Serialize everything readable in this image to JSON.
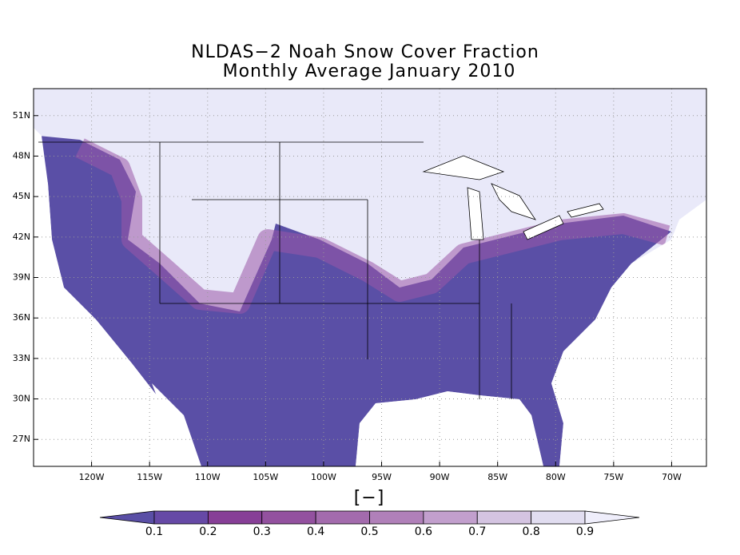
{
  "map": {
    "title": [
      "NLDAS−2 Noah Snow Cover Fraction",
      "Monthly Average January 2010"
    ],
    "xlim": [
      -125,
      -67
    ],
    "ylim": [
      25,
      53
    ],
    "xticks": [
      {
        "value": -120,
        "label": "120W"
      },
      {
        "value": -115,
        "label": "115W"
      },
      {
        "value": -110,
        "label": "110W"
      },
      {
        "value": -105,
        "label": "105W"
      },
      {
        "value": -100,
        "label": "100W"
      },
      {
        "value": -95,
        "label": "95W"
      },
      {
        "value": -90,
        "label": "90W"
      },
      {
        "value": -85,
        "label": "85W"
      },
      {
        "value": -80,
        "label": "80W"
      },
      {
        "value": -75,
        "label": "75W"
      },
      {
        "value": -70,
        "label": "70W"
      }
    ],
    "yticks": [
      {
        "value": 27,
        "label": "27N"
      },
      {
        "value": 30,
        "label": "30N"
      },
      {
        "value": 33,
        "label": "33N"
      },
      {
        "value": 36,
        "label": "36N"
      },
      {
        "value": 39,
        "label": "39N"
      },
      {
        "value": 42,
        "label": "42N"
      },
      {
        "value": 45,
        "label": "45N"
      },
      {
        "value": 48,
        "label": "48N"
      },
      {
        "value": 51,
        "label": "51N"
      }
    ],
    "grid": true
  },
  "colorbar": {
    "label": "[−]",
    "ticks": [
      0.1,
      0.2,
      0.3,
      0.4,
      0.5,
      0.6,
      0.7,
      0.8,
      0.9
    ],
    "colors": [
      "#5a4fa6",
      "#6649a6",
      "#873f97",
      "#93519f",
      "#a36bad",
      "#b080b9",
      "#c29fcd",
      "#d4c4e1",
      "#e1ddf0",
      "#efeefb"
    ]
  }
}
